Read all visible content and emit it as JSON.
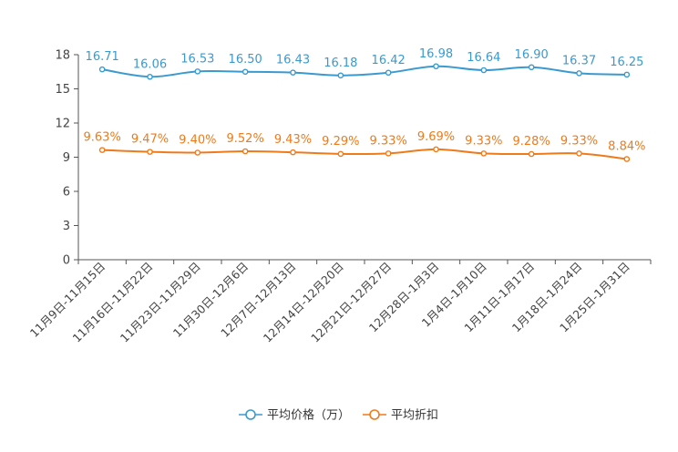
{
  "chart_data": {
    "type": "line",
    "categories": [
      "11月9日-11月15日",
      "11月16日-11月22日",
      "11月23日-11月29日",
      "11月30日-12月6日",
      "12月7日-12月13日",
      "12月14日-12月20日",
      "12月21日-12月27日",
      "12月28日-1月3日",
      "1月4日-1月10日",
      "1月11日-1月17日",
      "1月18日-1月24日",
      "1月25日-1月31日"
    ],
    "ylim": [
      0,
      18
    ],
    "yticks": [
      0,
      3,
      6,
      9,
      12,
      15,
      18
    ],
    "series": [
      {
        "name": "平均价格（万）",
        "color": "#3a9ad0",
        "values": [
          16.71,
          16.06,
          16.53,
          16.5,
          16.43,
          16.18,
          16.42,
          16.98,
          16.64,
          16.9,
          16.37,
          16.25
        ],
        "labels": [
          "16.71",
          "16.06",
          "16.53",
          "16.50",
          "16.43",
          "16.18",
          "16.42",
          "16.98",
          "16.64",
          "16.90",
          "16.37",
          "16.25"
        ]
      },
      {
        "name": "平均折扣",
        "color": "#f07a1a",
        "values": [
          9.63,
          9.47,
          9.4,
          9.52,
          9.43,
          9.29,
          9.33,
          9.69,
          9.33,
          9.28,
          9.33,
          8.84
        ],
        "labels": [
          "9.63%",
          "9.47%",
          "9.40%",
          "9.52%",
          "9.43%",
          "9.29%",
          "9.33%",
          "9.69%",
          "9.33%",
          "9.28%",
          "9.33%",
          "8.84%"
        ]
      }
    ],
    "legend_position": "bottom-center"
  }
}
